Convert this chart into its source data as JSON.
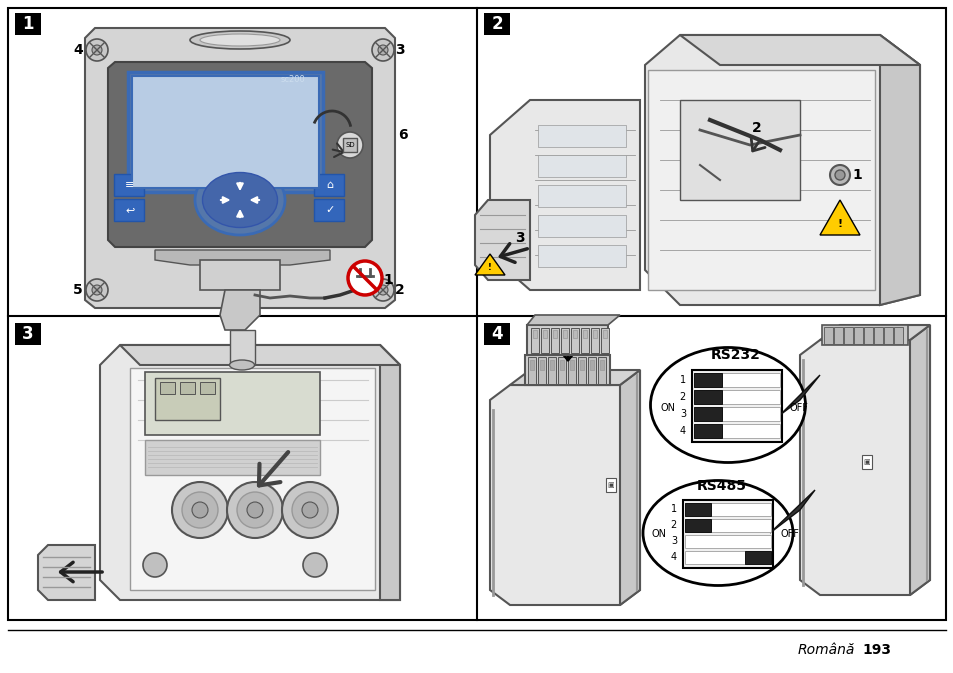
{
  "bg_color": "#ffffff",
  "lc": "#000000",
  "dgray": "#555555",
  "lgray": "#e0e0e0",
  "mgray": "#999999",
  "panel_bg": "#f8f8f8",
  "blue_border": "#3a6ab5",
  "blue_btn": "#4a7ec0",
  "blue_screen": "#b8cce4",
  "dark_btn": "#2a4a80",
  "screw_color": "#c0c0c0",
  "footer_italic": "Română",
  "footer_bold": "193",
  "panel_nums": [
    "1",
    "2",
    "3",
    "4"
  ],
  "red": "#cc0000",
  "yellow": "#ffcc00",
  "sw_dark": "#333333",
  "sw_light": "#f0f0f0"
}
